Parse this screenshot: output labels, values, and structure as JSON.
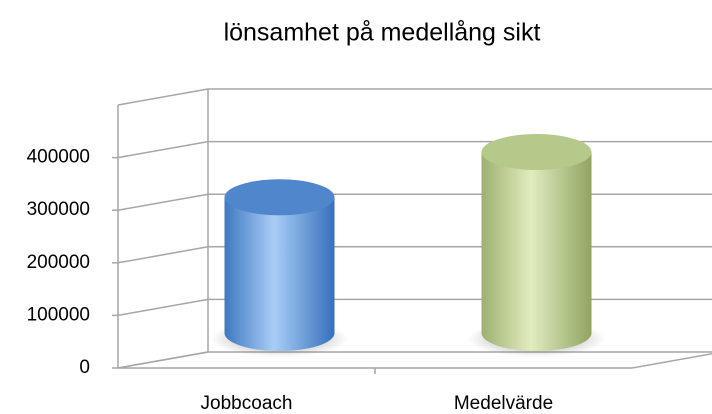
{
  "chart_data": {
    "type": "bar3d",
    "title": "lönsamhet på medellång sikt",
    "categories": [
      "Jobbcoach",
      "Medelvärde"
    ],
    "series": [
      {
        "name": "lönsamhet",
        "colors": [
          "#4f86cc",
          "#b5c98a"
        ],
        "values": [
          300000,
          400000
        ]
      }
    ],
    "ylim": [
      0,
      500000
    ],
    "yticks": [
      0,
      100000,
      200000,
      300000,
      400000
    ],
    "grid": true
  }
}
